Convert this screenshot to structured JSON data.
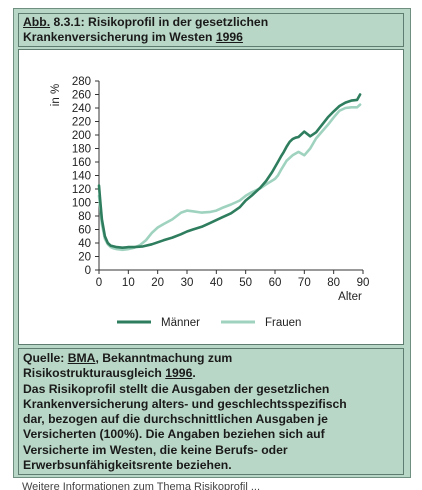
{
  "title": {
    "prefix": "Abb.",
    "line1_rest": " 8.3.1: Risikoprofil in der gesetzlichen",
    "line2_main": "Krankenversicherung im Westen ",
    "line2_year": "1996"
  },
  "source": {
    "line1_prefix": "Quelle: ",
    "line1_abbr": "BMA",
    "line1_rest": ", Bekanntmachung zum",
    "line2_main": "Risikostrukturausgleich ",
    "line2_year": "1996",
    "line2_end": ".",
    "lines": [
      "Das Risikoprofil stellt die Ausgaben der gesetzlichen",
      "Krankenversicherung alters- und geschlechtsspezifisch",
      "dar, bezogen auf die durchschnittlichen Ausgaben je",
      "Versicherten (100%). Die Angaben beziehen sich auf",
      "Versicherte im Westen, die keine Berufs- oder",
      "Erwerbsunfähigkeitsrente beziehen."
    ]
  },
  "footer_fragment": "Weitere Informationen zum Thema Risikoprofil ...",
  "colors": {
    "frame_bg": "#b9d7c7",
    "maenner": "#2e7d5e",
    "frauen": "#9fd3bf"
  },
  "chart_data": {
    "type": "line",
    "ylabel": "in %",
    "xlabel": "Alter",
    "xlim": [
      0,
      90
    ],
    "ylim": [
      0,
      280
    ],
    "xticks": [
      0,
      10,
      20,
      30,
      40,
      50,
      60,
      70,
      80,
      90
    ],
    "yticks": [
      0,
      20,
      40,
      60,
      80,
      100,
      120,
      140,
      160,
      180,
      200,
      220,
      240,
      260,
      280
    ],
    "grid": false,
    "legend": "bottom",
    "series": [
      {
        "name": "Männer",
        "color": "#2e7d5e",
        "x": [
          0,
          0.5,
          1,
          2,
          3,
          4,
          5,
          6,
          8,
          10,
          12,
          15,
          18,
          20,
          22,
          25,
          28,
          30,
          32,
          35,
          38,
          40,
          42,
          45,
          48,
          50,
          52,
          55,
          57,
          59,
          61,
          62,
          63,
          64,
          65,
          66,
          67,
          68,
          70,
          72,
          74,
          76,
          78,
          80,
          82,
          84,
          86,
          88,
          89
        ],
        "values": [
          125,
          98,
          75,
          50,
          40,
          36,
          35,
          34,
          33,
          34,
          34,
          35,
          38,
          41,
          44,
          48,
          53,
          57,
          60,
          64,
          70,
          74,
          78,
          84,
          93,
          103,
          110,
          122,
          132,
          145,
          160,
          168,
          175,
          183,
          190,
          194,
          196,
          197,
          205,
          198,
          204,
          215,
          226,
          235,
          243,
          248,
          251,
          252,
          260
        ]
      },
      {
        "name": "Frauen",
        "color": "#9fd3bf",
        "x": [
          0,
          0.5,
          1,
          2,
          3,
          4,
          5,
          6,
          8,
          10,
          12,
          14,
          16,
          18,
          20,
          22,
          25,
          28,
          30,
          32,
          35,
          38,
          40,
          42,
          45,
          48,
          50,
          52,
          55,
          57,
          60,
          61,
          62,
          64,
          66,
          68,
          70,
          72,
          74,
          76,
          78,
          80,
          82,
          84,
          86,
          88,
          89
        ],
        "values": [
          110,
          88,
          68,
          46,
          38,
          34,
          32,
          31,
          30,
          31,
          33,
          37,
          44,
          55,
          63,
          68,
          75,
          85,
          88,
          87,
          85,
          86,
          88,
          92,
          97,
          103,
          110,
          115,
          121,
          127,
          135,
          140,
          148,
          162,
          170,
          175,
          170,
          180,
          195,
          205,
          215,
          226,
          236,
          240,
          241,
          241,
          245
        ]
      }
    ]
  }
}
